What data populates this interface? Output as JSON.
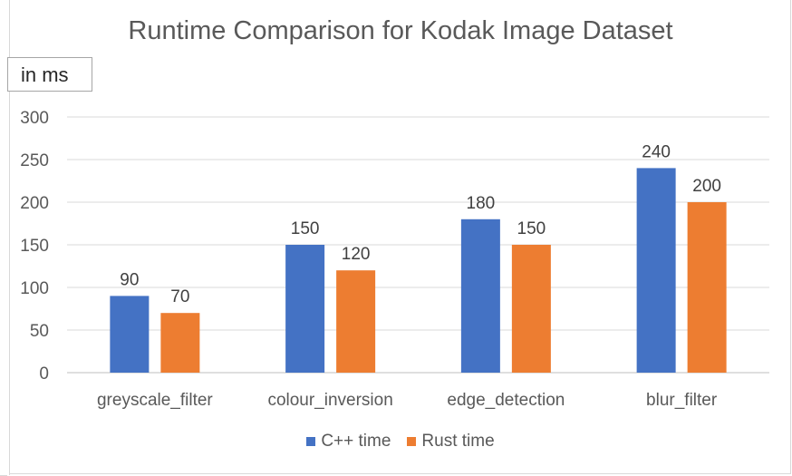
{
  "chart_data": {
    "type": "bar",
    "title": "Runtime Comparison for Kodak Image Dataset",
    "unit_label": "in ms",
    "categories": [
      "greyscale_filter",
      "colour_inversion",
      "edge_detection",
      "blur_filter"
    ],
    "series": [
      {
        "name": "C++ time",
        "values": [
          90,
          150,
          180,
          240
        ],
        "color": "#4472c4"
      },
      {
        "name": "Rust time",
        "values": [
          70,
          120,
          150,
          200
        ],
        "color": "#ed7d31"
      }
    ],
    "y_ticks": [
      "0",
      "50",
      "100",
      "150",
      "200",
      "250",
      "300"
    ],
    "ylim": [
      0,
      300
    ],
    "grid": true,
    "legend_position": "bottom"
  }
}
